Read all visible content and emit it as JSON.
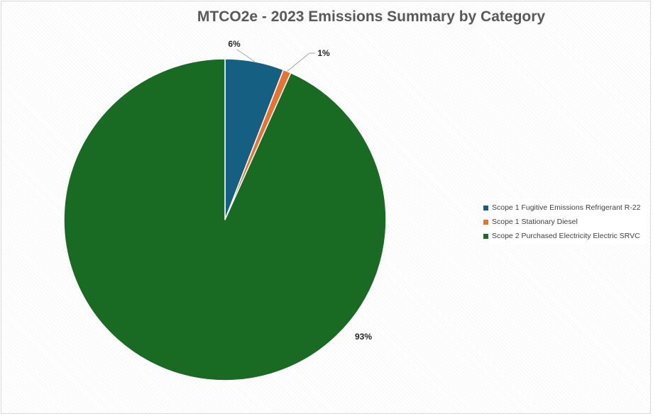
{
  "chart_data": {
    "type": "pie",
    "title": "MTCO2e - 2023 Emissions Summary by Category",
    "slices": [
      {
        "name": "Scope 1  Fugitive Emissions Refrigerant R-22",
        "value": 5.9,
        "label": "6%",
        "color": "#156082"
      },
      {
        "name": "Scope 1  Stationary  Diesel",
        "value": 0.8,
        "label": "1%",
        "color": "#E97132"
      },
      {
        "name": "Scope 2 Purchased Electricity Electric SRVC",
        "value": 93.3,
        "label": "93%",
        "color": "#196B24"
      }
    ],
    "start_angle": "12 o'clock",
    "direction": "clockwise",
    "legend_position": "right"
  }
}
